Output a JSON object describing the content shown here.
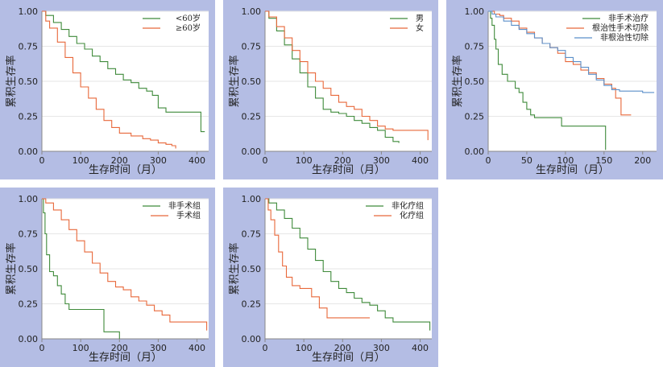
{
  "colors": {
    "green": "#3f8a3a",
    "orange": "#e8683a",
    "blue": "#5b8fc9",
    "panel_bg": "#b4bde4"
  },
  "chart_data": [
    {
      "type": "line",
      "title": "",
      "xlabel": "生存时间（月）",
      "ylabel": "累积生存率",
      "xlim": [
        0,
        430
      ],
      "ylim": [
        0,
        1
      ],
      "x_ticks": [
        0,
        100,
        200,
        300,
        400
      ],
      "y_ticks": [
        "0.00",
        "0.25",
        "0.50",
        "0.75",
        "1.00"
      ],
      "grid": true,
      "legend_position": "top-right",
      "series": [
        {
          "name": "<60岁",
          "color": "#3f8a3a",
          "x": [
            0,
            10,
            30,
            50,
            70,
            90,
            110,
            130,
            150,
            170,
            190,
            210,
            230,
            250,
            270,
            285,
            300,
            320,
            340,
            360,
            380,
            400,
            410,
            420
          ],
          "y": [
            1.0,
            0.97,
            0.92,
            0.87,
            0.82,
            0.77,
            0.73,
            0.68,
            0.64,
            0.59,
            0.55,
            0.51,
            0.49,
            0.45,
            0.43,
            0.4,
            0.31,
            0.28,
            0.28,
            0.28,
            0.28,
            0.28,
            0.14,
            0.14
          ]
        },
        {
          "name": "≥60岁",
          "color": "#e8683a",
          "x": [
            0,
            10,
            20,
            40,
            60,
            80,
            100,
            120,
            140,
            160,
            180,
            200,
            230,
            260,
            280,
            300,
            320,
            335,
            345
          ],
          "y": [
            1.0,
            0.93,
            0.88,
            0.78,
            0.67,
            0.56,
            0.46,
            0.38,
            0.3,
            0.22,
            0.17,
            0.13,
            0.11,
            0.09,
            0.08,
            0.06,
            0.05,
            0.04,
            0.02
          ]
        }
      ]
    },
    {
      "type": "line",
      "title": "",
      "xlabel": "生存时间（月）",
      "ylabel": "累积生存率",
      "xlim": [
        0,
        430
      ],
      "ylim": [
        0,
        1
      ],
      "x_ticks": [
        0,
        100,
        200,
        300,
        400
      ],
      "y_ticks": [
        "0.00",
        "0.25",
        "0.50",
        "0.75",
        "1.00"
      ],
      "grid": true,
      "legend_position": "top-right",
      "series": [
        {
          "name": "男",
          "color": "#3f8a3a",
          "x": [
            0,
            10,
            30,
            50,
            70,
            90,
            110,
            130,
            150,
            170,
            190,
            210,
            230,
            250,
            270,
            290,
            310,
            330,
            345
          ],
          "y": [
            1.0,
            0.95,
            0.86,
            0.76,
            0.66,
            0.56,
            0.46,
            0.38,
            0.3,
            0.28,
            0.27,
            0.25,
            0.22,
            0.2,
            0.17,
            0.15,
            0.1,
            0.07,
            0.06
          ]
        },
        {
          "name": "女",
          "color": "#e8683a",
          "x": [
            0,
            10,
            30,
            50,
            70,
            90,
            110,
            130,
            150,
            170,
            190,
            210,
            230,
            250,
            270,
            290,
            310,
            330,
            360,
            390,
            420
          ],
          "y": [
            1.0,
            0.96,
            0.89,
            0.81,
            0.72,
            0.64,
            0.56,
            0.5,
            0.45,
            0.4,
            0.35,
            0.32,
            0.3,
            0.25,
            0.22,
            0.18,
            0.16,
            0.15,
            0.15,
            0.15,
            0.08
          ]
        }
      ]
    },
    {
      "type": "line",
      "title": "",
      "xlabel": "生存时间（月）",
      "ylabel": "累积生存率",
      "xlim": [
        0,
        218
      ],
      "ylim": [
        0,
        1
      ],
      "x_ticks": [
        0,
        50,
        100,
        150,
        200
      ],
      "y_ticks": [
        "0.00",
        "0.25",
        "0.50",
        "0.75",
        "1.00"
      ],
      "grid": true,
      "legend_position": "top-right",
      "series": [
        {
          "name": "非手术治疗",
          "color": "#3f8a3a",
          "x": [
            0,
            3,
            5,
            8,
            10,
            13,
            18,
            25,
            35,
            40,
            45,
            50,
            55,
            60,
            70,
            80,
            95,
            120,
            140,
            152
          ],
          "y": [
            1.0,
            0.95,
            0.9,
            0.8,
            0.73,
            0.62,
            0.55,
            0.5,
            0.45,
            0.42,
            0.35,
            0.3,
            0.26,
            0.24,
            0.24,
            0.24,
            0.18,
            0.18,
            0.18,
            0.01
          ]
        },
        {
          "name": "根治性手术切除",
          "color": "#e8683a",
          "x": [
            0,
            8,
            15,
            20,
            30,
            40,
            50,
            60,
            70,
            80,
            90,
            100,
            110,
            120,
            130,
            140,
            150,
            160,
            165,
            172,
            185
          ],
          "y": [
            1.0,
            0.98,
            0.97,
            0.95,
            0.93,
            0.88,
            0.85,
            0.81,
            0.77,
            0.74,
            0.7,
            0.64,
            0.62,
            0.58,
            0.56,
            0.52,
            0.48,
            0.45,
            0.38,
            0.26,
            0.26
          ]
        },
        {
          "name": "非根治性切除",
          "color": "#5b8fc9",
          "x": [
            0,
            5,
            10,
            20,
            30,
            40,
            50,
            60,
            70,
            80,
            90,
            100,
            110,
            120,
            130,
            140,
            150,
            160,
            170,
            185,
            200,
            215
          ],
          "y": [
            1.0,
            0.98,
            0.96,
            0.93,
            0.9,
            0.87,
            0.84,
            0.81,
            0.77,
            0.74,
            0.72,
            0.67,
            0.64,
            0.6,
            0.55,
            0.51,
            0.47,
            0.44,
            0.43,
            0.43,
            0.42,
            0.42
          ]
        }
      ]
    },
    {
      "type": "line",
      "title": "",
      "xlabel": "生存时间（月）",
      "ylabel": "累积生存率",
      "xlim": [
        0,
        430
      ],
      "ylim": [
        0,
        1
      ],
      "x_ticks": [
        0,
        100,
        200,
        300,
        400
      ],
      "y_ticks": [
        "0.00",
        "0.25",
        "0.50",
        "0.75",
        "1.00"
      ],
      "grid": true,
      "legend_position": "top-right",
      "series": [
        {
          "name": "非手术组",
          "color": "#3f8a3a",
          "x": [
            0,
            4,
            8,
            12,
            20,
            30,
            40,
            50,
            60,
            70,
            80,
            100,
            120,
            140,
            150,
            160,
            180,
            190,
            195,
            200
          ],
          "y": [
            1.0,
            0.9,
            0.75,
            0.6,
            0.48,
            0.45,
            0.38,
            0.32,
            0.25,
            0.21,
            0.21,
            0.21,
            0.21,
            0.21,
            0.21,
            0.05,
            0.05,
            0.05,
            0.05,
            0.0
          ]
        },
        {
          "name": "手术组",
          "color": "#e8683a",
          "x": [
            0,
            10,
            30,
            50,
            70,
            90,
            110,
            130,
            150,
            170,
            190,
            210,
            230,
            250,
            270,
            290,
            310,
            330,
            360,
            390,
            415,
            425
          ],
          "y": [
            1.0,
            0.97,
            0.92,
            0.85,
            0.78,
            0.7,
            0.62,
            0.54,
            0.47,
            0.41,
            0.37,
            0.35,
            0.3,
            0.27,
            0.24,
            0.2,
            0.17,
            0.12,
            0.12,
            0.12,
            0.12,
            0.06
          ]
        }
      ]
    },
    {
      "type": "line",
      "title": "",
      "xlabel": "生存时间（月）",
      "ylabel": "累积生存率",
      "xlim": [
        0,
        430
      ],
      "ylim": [
        0,
        1
      ],
      "x_ticks": [
        0,
        100,
        200,
        300,
        400
      ],
      "y_ticks": [
        "0.00",
        "0.25",
        "0.50",
        "0.75",
        "1.00"
      ],
      "grid": true,
      "legend_position": "top-right",
      "series": [
        {
          "name": "非化疗组",
          "color": "#3f8a3a",
          "x": [
            0,
            10,
            30,
            50,
            70,
            90,
            110,
            130,
            150,
            170,
            190,
            210,
            230,
            250,
            270,
            290,
            310,
            330,
            350,
            380,
            410,
            425
          ],
          "y": [
            1.0,
            0.97,
            0.92,
            0.86,
            0.79,
            0.72,
            0.64,
            0.56,
            0.48,
            0.41,
            0.36,
            0.33,
            0.29,
            0.26,
            0.24,
            0.2,
            0.15,
            0.12,
            0.12,
            0.12,
            0.12,
            0.06
          ]
        },
        {
          "name": "化疗组",
          "color": "#e8683a",
          "x": [
            0,
            8,
            15,
            25,
            35,
            45,
            55,
            70,
            90,
            100,
            120,
            140,
            160,
            180,
            200,
            230,
            260,
            270
          ],
          "y": [
            1.0,
            0.92,
            0.85,
            0.74,
            0.62,
            0.52,
            0.44,
            0.38,
            0.36,
            0.36,
            0.3,
            0.22,
            0.15,
            0.15,
            0.15,
            0.15,
            0.15,
            0.15
          ]
        }
      ]
    }
  ]
}
